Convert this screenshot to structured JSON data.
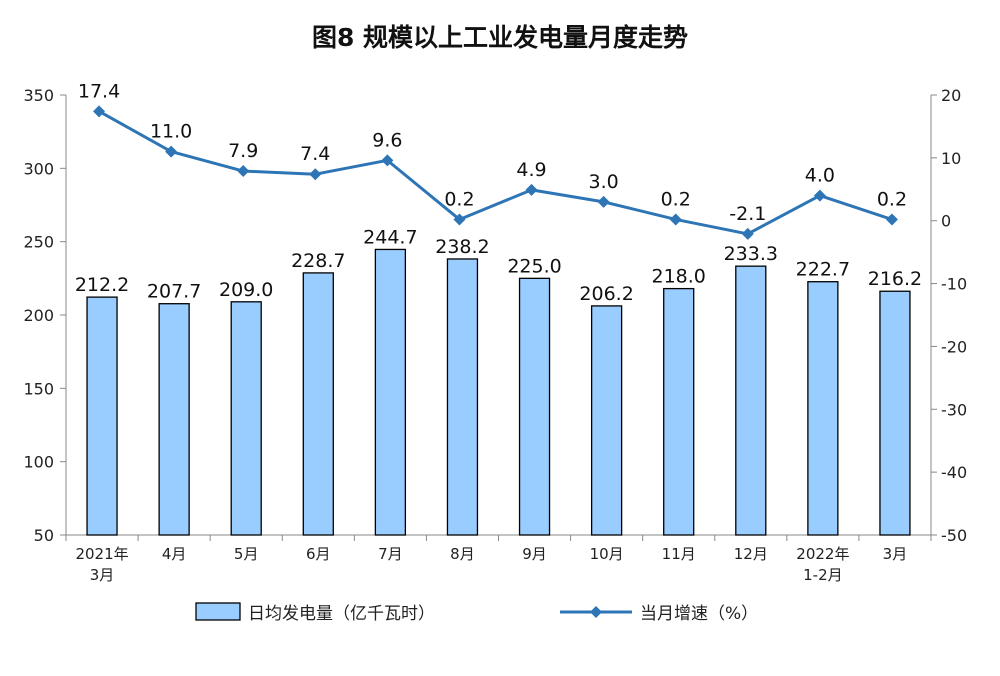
{
  "chart_data": {
    "type": "bar+line",
    "title": "图8  规模以上工业发电量月度走势",
    "categories": [
      [
        "2021年",
        "3月"
      ],
      [
        "4月"
      ],
      [
        "5月"
      ],
      [
        "6月"
      ],
      [
        "7月"
      ],
      [
        "8月"
      ],
      [
        "9月"
      ],
      [
        "10月"
      ],
      [
        "11月"
      ],
      [
        "12月"
      ],
      [
        "2022年",
        "1-2月"
      ],
      [
        "3月"
      ]
    ],
    "series": [
      {
        "name": "日均发电量（亿千瓦时）",
        "type": "bar",
        "axis": "left",
        "values": [
          212.2,
          207.7,
          209.0,
          228.7,
          244.7,
          238.2,
          225.0,
          206.2,
          218.0,
          233.3,
          222.7,
          216.2
        ],
        "labels": [
          "212.2",
          "207.7",
          "209.0",
          "228.7",
          "244.7",
          "238.2",
          "225.0",
          "206.2",
          "218.0",
          "233.3",
          "222.7",
          "216.2"
        ],
        "color": "#99ccff"
      },
      {
        "name": "当月增速（%）",
        "type": "line",
        "axis": "right",
        "values": [
          17.4,
          11.0,
          7.9,
          7.4,
          9.6,
          0.2,
          4.9,
          3.0,
          0.2,
          -2.1,
          4.0,
          0.2
        ],
        "labels": [
          "17.4",
          "11.0",
          "7.9",
          "7.4",
          "9.6",
          "0.2",
          "4.9",
          "3.0",
          "0.2",
          "-2.1",
          "4.0",
          "0.2"
        ],
        "color": "#2e75b6"
      }
    ],
    "y_left": {
      "range": [
        50,
        350
      ],
      "ticks": [
        "50",
        "100",
        "150",
        "200",
        "250",
        "300",
        "350"
      ]
    },
    "y_right": {
      "range": [
        -50,
        20
      ],
      "ticks": [
        "-50",
        "-40",
        "-30",
        "-20",
        "-10",
        "0",
        "10",
        "20"
      ]
    },
    "grid": false,
    "legend_position": "bottom"
  }
}
